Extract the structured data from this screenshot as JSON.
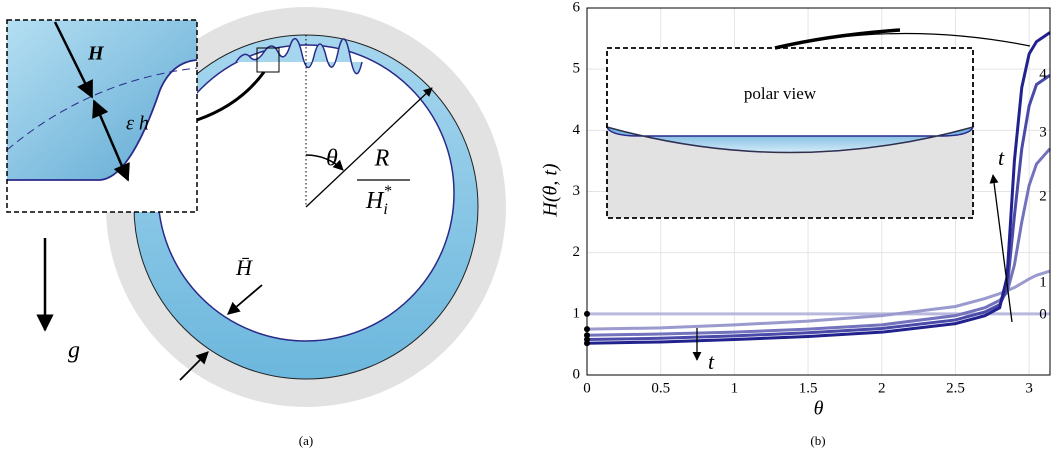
{
  "panel_a": {
    "label": "(a)",
    "inset_thickness": "H",
    "inset_perturbation": "ε h",
    "gravity": "g",
    "angle": "θ",
    "radius_num": "R",
    "radius_den": {
      "base": "H",
      "sub": "i",
      "sup": "*"
    },
    "mean_thickness": "H̄"
  },
  "panel_b_label": "(b)",
  "chart_data": {
    "type": "line",
    "x_label": "θ",
    "y_label": "H(θ, t)",
    "inset_label": "polar view",
    "annotations": [
      "t",
      "t"
    ],
    "xlim": [
      0,
      3.1416
    ],
    "ylim": [
      0,
      6
    ],
    "xticks": [
      0,
      0.5,
      1,
      1.5,
      2,
      2.5,
      3
    ],
    "yticks": [
      0,
      1,
      2,
      3,
      4,
      5,
      6
    ],
    "grid": true,
    "x": [
      0,
      0.5,
      1,
      1.5,
      2,
      2.5,
      2.7,
      2.8,
      2.85,
      2.9,
      2.95,
      3.0,
      3.05,
      3.1416
    ],
    "series": [
      {
        "name": "0",
        "color": "#b9b9dd",
        "values": [
          1,
          1,
          1,
          1,
          1,
          1,
          1,
          1,
          1,
          1,
          1,
          1,
          1,
          1
        ]
      },
      {
        "name": "1",
        "color": "#9a9acf",
        "values": [
          0.75,
          0.77,
          0.82,
          0.88,
          0.97,
          1.12,
          1.25,
          1.33,
          1.38,
          1.43,
          1.5,
          1.57,
          1.63,
          1.7
        ]
      },
      {
        "name": "2",
        "color": "#7373bd",
        "values": [
          0.65,
          0.67,
          0.7,
          0.75,
          0.82,
          0.97,
          1.1,
          1.22,
          1.35,
          1.8,
          2.5,
          3.1,
          3.45,
          3.7
        ]
      },
      {
        "name": "3",
        "color": "#4a4aa8",
        "values": [
          0.58,
          0.6,
          0.64,
          0.69,
          0.76,
          0.9,
          1.03,
          1.15,
          1.4,
          2.6,
          3.7,
          4.4,
          4.75,
          4.9
        ]
      },
      {
        "name": "4",
        "color": "#22228f",
        "values": [
          0.52,
          0.54,
          0.58,
          0.63,
          0.7,
          0.84,
          0.97,
          1.1,
          1.6,
          3.5,
          4.7,
          5.25,
          5.45,
          5.6
        ]
      }
    ]
  }
}
